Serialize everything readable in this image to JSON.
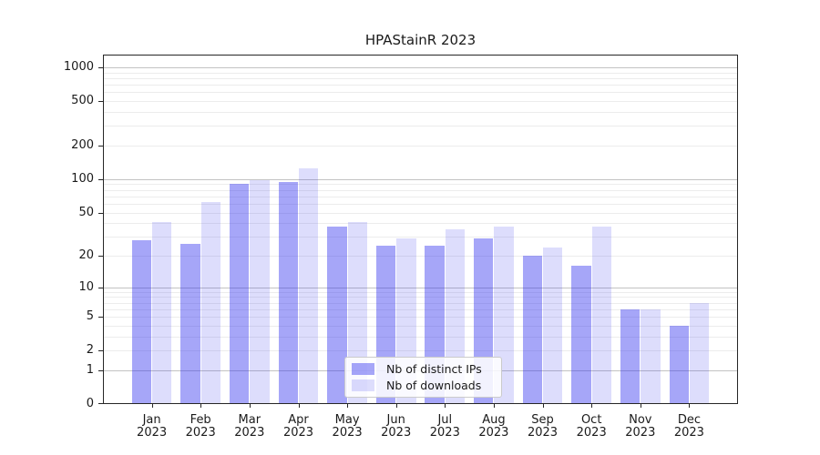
{
  "title": "HPAStainR 2023",
  "legend": {
    "items": [
      {
        "label": "Nb of distinct IPs",
        "key": "ips"
      },
      {
        "label": "Nb of downloads",
        "key": "downloads"
      }
    ]
  },
  "colors": {
    "ips_bar": "rgba(43,43,238,0.42)",
    "downloads_bar": "rgba(43,43,238,0.16)",
    "major_gridline": "#c3c3c3",
    "minor_gridline": "#ececec",
    "axis_border": "#262626",
    "text": "#1a1a1a"
  },
  "chart_data": {
    "type": "bar",
    "title": "HPAStainR 2023",
    "categories": [
      "Jan 2023",
      "Feb 2023",
      "Mar 2023",
      "Apr 2023",
      "May 2023",
      "Jun 2023",
      "Jul 2023",
      "Aug 2023",
      "Sep 2023",
      "Oct 2023",
      "Nov 2023",
      "Dec 2023"
    ],
    "series": [
      {
        "name": "Nb of distinct IPs",
        "values": [
          28,
          26,
          90,
          95,
          37,
          25,
          25,
          29,
          20,
          16,
          6,
          4
        ]
      },
      {
        "name": "Nb of downloads",
        "values": [
          41,
          62,
          98,
          124,
          41,
          29,
          35,
          37,
          24,
          37,
          6,
          7
        ]
      }
    ],
    "xlabel": "",
    "ylabel": "",
    "yscale": "log1p",
    "ylim": [
      0,
      1300
    ],
    "y_ticks": [
      0,
      1,
      2,
      5,
      10,
      20,
      50,
      100,
      200,
      500,
      1000
    ],
    "major_grid_values": [
      1,
      10,
      100,
      1000
    ],
    "minor_grid_values": [
      2,
      3,
      4,
      5,
      6,
      7,
      8,
      9,
      20,
      30,
      40,
      50,
      60,
      70,
      80,
      90,
      200,
      300,
      400,
      500,
      600,
      700,
      800,
      900
    ],
    "grid": "horizontal",
    "legend_position": "lower center"
  }
}
